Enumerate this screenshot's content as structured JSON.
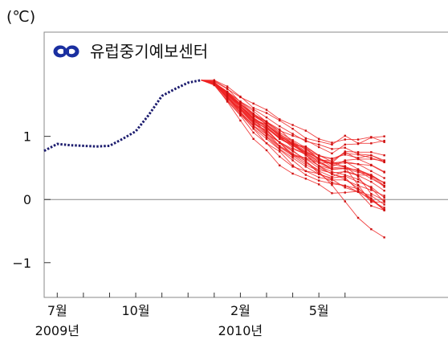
{
  "chart_data": {
    "type": "line",
    "unit_label": "(℃)",
    "logo_text": "유럽중기예보센터",
    "y_ticks": [
      1,
      0,
      -1
    ],
    "y_tick_labels": [
      "1",
      "0",
      "−1"
    ],
    "ylim": [
      -1.55,
      2.65
    ],
    "xlim": [
      0,
      15.65
    ],
    "x_tick_labels": [
      {
        "x": 0.5,
        "label": "7월"
      },
      {
        "x": 3.5,
        "label": "10월"
      },
      {
        "x": 7.5,
        "label": "2월"
      },
      {
        "x": 10.5,
        "label": "5월"
      }
    ],
    "x_ticks": [
      0.5,
      1.5,
      2.5,
      3.5,
      4.5,
      5.5,
      6.5,
      7.5,
      8.5,
      9.5,
      10.5,
      11.5
    ],
    "year_labels": [
      {
        "x": 0.5,
        "label": "2009년"
      },
      {
        "x": 7.5,
        "label": "2010년"
      }
    ],
    "colors": {
      "observed": "#1c1c6e",
      "forecast": "#ee2222",
      "logo": "#1a2fa0",
      "grid": "#888888"
    },
    "series": [
      {
        "type": "observed",
        "x": [
          0,
          0.5,
          1,
          1.5,
          2,
          2.5,
          3,
          3.5,
          4,
          4.5,
          5,
          5.5,
          6
        ],
        "y": [
          0.77,
          0.88,
          0.86,
          0.85,
          0.84,
          0.85,
          0.96,
          1.08,
          1.34,
          1.64,
          1.75,
          1.85,
          1.89
        ]
      },
      {
        "type": "forecast",
        "x": [
          6,
          6.5,
          7,
          7.5,
          8,
          8.5,
          9,
          9.5,
          10,
          10.5,
          11,
          11.5,
          12,
          12.5,
          13
        ],
        "members": [
          [
            1.89,
            1.86,
            1.66,
            1.45,
            1.24,
            1.12,
            0.99,
            0.9,
            0.8,
            0.63,
            0.61,
            0.75,
            0.64,
            0.55,
            0.44
          ],
          [
            1.89,
            1.84,
            1.7,
            1.51,
            1.33,
            1.22,
            1.09,
            1.01,
            0.94,
            0.83,
            0.73,
            0.87,
            0.88,
            0.98,
            1.0
          ],
          [
            1.89,
            1.83,
            1.61,
            1.42,
            1.19,
            1.1,
            0.9,
            0.69,
            0.66,
            0.58,
            0.58,
            0.76,
            0.75,
            0.75,
            0.7
          ],
          [
            1.89,
            1.89,
            1.79,
            1.63,
            1.45,
            1.37,
            1.25,
            1.12,
            0.97,
            0.92,
            0.87,
            1.01,
            0.89,
            0.89,
            0.93
          ],
          [
            1.89,
            1.82,
            1.69,
            1.47,
            1.27,
            1.05,
            0.9,
            0.72,
            0.65,
            0.54,
            0.48,
            0.49,
            0.47,
            0.39,
            0.22
          ],
          [
            1.89,
            1.85,
            1.6,
            1.44,
            1.24,
            1.13,
            0.96,
            0.87,
            0.75,
            0.66,
            0.55,
            0.53,
            0.36,
            0.09,
            -0.01
          ],
          [
            1.89,
            1.85,
            1.69,
            1.49,
            1.27,
            1.18,
            1.0,
            0.88,
            0.82,
            0.64,
            0.56,
            0.58,
            0.56,
            0.54,
            0.43
          ],
          [
            1.89,
            1.84,
            1.62,
            1.37,
            1.12,
            0.89,
            0.76,
            0.54,
            0.39,
            0.3,
            0.25,
            0.22,
            0.17,
            0.02,
            -0.16
          ],
          [
            1.89,
            1.84,
            1.67,
            1.47,
            1.27,
            1.11,
            0.9,
            0.78,
            0.61,
            0.44,
            0.23,
            -0.03,
            -0.29,
            -0.47,
            -0.6
          ],
          [
            1.89,
            1.85,
            1.71,
            1.55,
            1.4,
            1.23,
            1.11,
            0.91,
            0.7,
            0.53,
            0.4,
            0.35,
            0.14,
            -0.02,
            -0.13
          ],
          [
            1.89,
            1.88,
            1.76,
            1.54,
            1.36,
            1.18,
            1.02,
            0.88,
            0.75,
            0.65,
            0.52,
            0.62,
            0.64,
            0.64,
            0.61
          ],
          [
            1.89,
            1.84,
            1.68,
            1.48,
            1.28,
            1.18,
            1.01,
            0.87,
            0.84,
            0.7,
            0.6,
            0.51,
            0.23,
            -0.04,
            -0.04
          ],
          [
            1.89,
            1.81,
            1.56,
            1.33,
            1.06,
            0.89,
            0.68,
            0.52,
            0.45,
            0.35,
            0.31,
            0.31,
            0.22,
            0.15,
            0.06
          ],
          [
            1.89,
            1.84,
            1.61,
            1.42,
            1.21,
            1.04,
            0.91,
            0.76,
            0.64,
            0.5,
            0.41,
            0.32,
            0.18,
            0.0,
            -0.17
          ],
          [
            1.89,
            1.83,
            1.55,
            1.25,
            0.96,
            0.78,
            0.54,
            0.41,
            0.33,
            0.24,
            0.1,
            0.11,
            0.13,
            0.06,
            -0.08
          ],
          [
            1.89,
            1.85,
            1.65,
            1.48,
            1.32,
            1.2,
            1.0,
            0.82,
            0.71,
            0.53,
            0.44,
            0.39,
            0.32,
            0.18,
            -0.04
          ],
          [
            1.89,
            1.87,
            1.75,
            1.62,
            1.52,
            1.42,
            1.27,
            1.18,
            1.09,
            0.96,
            0.9,
            0.95,
            0.95,
            0.99,
            0.91
          ],
          [
            1.89,
            1.84,
            1.59,
            1.37,
            1.16,
            1.0,
            0.83,
            0.69,
            0.55,
            0.45,
            0.36,
            0.45,
            0.39,
            0.38,
            0.26
          ],
          [
            1.89,
            1.86,
            1.67,
            1.5,
            1.34,
            1.19,
            1.03,
            0.92,
            0.79,
            0.69,
            0.65,
            0.71,
            0.66,
            0.7,
            0.6
          ],
          [
            1.89,
            1.82,
            1.57,
            1.35,
            1.13,
            0.96,
            0.79,
            0.62,
            0.45,
            0.41,
            0.32,
            0.19,
            0.12,
            0.01,
            -0.17
          ],
          [
            1.89,
            1.85,
            1.7,
            1.55,
            1.43,
            1.3,
            1.16,
            1.04,
            0.92,
            0.87,
            0.8,
            0.82,
            0.72,
            0.7,
            0.62
          ],
          [
            1.89,
            1.84,
            1.63,
            1.43,
            1.23,
            1.06,
            0.85,
            0.72,
            0.61,
            0.41,
            0.27,
            0.22,
            0.12,
            -0.1,
            -0.17
          ],
          [
            1.89,
            1.83,
            1.64,
            1.39,
            1.16,
            0.99,
            0.8,
            0.66,
            0.52,
            0.4,
            0.34,
            0.37,
            0.28,
            0.2,
            0.03
          ],
          [
            1.89,
            1.85,
            1.68,
            1.51,
            1.36,
            1.22,
            1.04,
            0.89,
            0.77,
            0.64,
            0.58,
            0.6,
            0.48,
            0.36,
            0.2
          ],
          [
            1.89,
            1.84,
            1.62,
            1.42,
            1.22,
            1.08,
            0.91,
            0.8,
            0.72,
            0.6,
            0.48,
            0.49,
            0.43,
            0.39,
            0.26
          ],
          [
            1.89,
            1.85,
            1.7,
            1.52,
            1.35,
            1.24,
            1.06,
            0.94,
            0.82,
            0.7,
            0.64,
            0.73,
            0.71,
            0.66,
            0.59
          ],
          [
            1.89,
            1.83,
            1.61,
            1.39,
            1.17,
            1.03,
            0.84,
            0.71,
            0.58,
            0.47,
            0.42,
            0.44,
            0.38,
            0.28,
            0.14
          ],
          [
            1.89,
            1.86,
            1.66,
            1.48,
            1.29,
            1.14,
            0.97,
            0.87,
            0.7,
            0.58,
            0.48,
            0.5,
            0.46,
            0.37,
            0.27
          ],
          [
            1.89,
            1.84,
            1.64,
            1.45,
            1.26,
            1.16,
            0.98,
            0.86,
            0.73,
            0.6,
            0.5,
            0.52,
            0.45,
            0.33,
            0.22
          ],
          [
            1.89,
            1.86,
            1.69,
            1.48,
            1.3,
            1.15,
            0.96,
            0.85,
            0.74,
            0.62,
            0.57,
            0.6,
            0.56,
            0.45,
            0.34
          ]
        ]
      }
    ]
  }
}
